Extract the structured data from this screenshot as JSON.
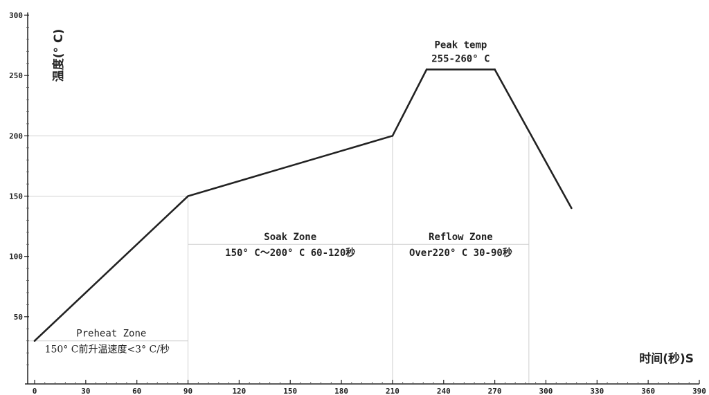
{
  "chart_data": {
    "type": "line",
    "ylabel": "温度(° C)",
    "xlabel": "时间(秒)S",
    "xlim": [
      0,
      390
    ],
    "ylim": [
      0,
      300
    ],
    "x_ticks": [
      0,
      30,
      60,
      90,
      120,
      150,
      180,
      210,
      240,
      270,
      300,
      330,
      360,
      390
    ],
    "y_ticks": [
      50,
      100,
      150,
      200,
      250,
      300
    ],
    "grid": false,
    "series": [
      {
        "points": [
          {
            "x": 0,
            "y": 30
          },
          {
            "x": 90,
            "y": 150
          },
          {
            "x": 210,
            "y": 200
          },
          {
            "x": 230,
            "y": 255
          },
          {
            "x": 270,
            "y": 255
          },
          {
            "x": 315,
            "y": 140
          }
        ]
      }
    ],
    "zones": [
      {
        "name": "Preheat Zone",
        "detail": "150° C前升温速度<3° C/秒",
        "x_start": 0,
        "x_end": 90,
        "y_line": 30
      },
      {
        "name": "Soak Zone",
        "detail": "150° C～200° C   60-120秒",
        "x_start": 90,
        "x_end": 210,
        "y_line": 110
      },
      {
        "name": "Reflow Zone",
        "detail": "Over220° C 30-90秒",
        "x_start": 210,
        "x_end": 290,
        "y_line": 110
      }
    ],
    "reference_lines": [
      {
        "y": 200,
        "x_start": 0,
        "x_end": 210
      },
      {
        "y": 150,
        "x_start": 0,
        "x_end": 90
      }
    ],
    "annotations": [
      {
        "title": "Peak temp",
        "detail": "255-260° C",
        "x": 250,
        "y": 255
      }
    ]
  }
}
